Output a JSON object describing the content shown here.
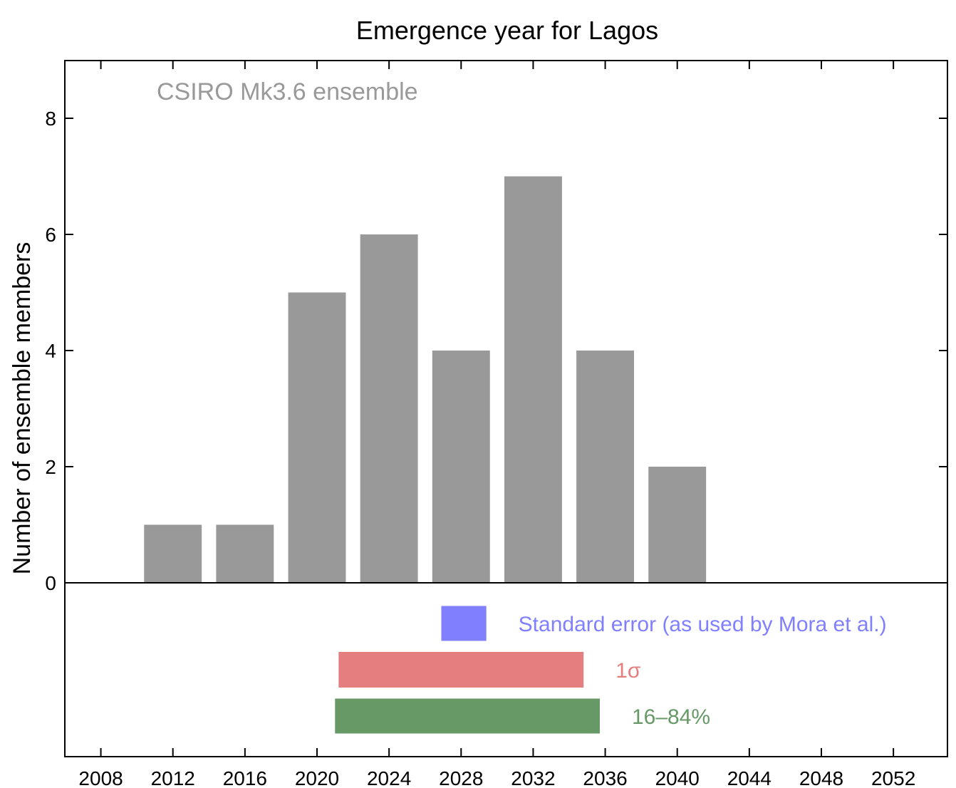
{
  "chart_data": {
    "type": "bar",
    "title": "Emergence year for Lagos",
    "annotation": "CSIRO Mk3.6 ensemble",
    "annotation_color": "#999999",
    "xlabel": "",
    "ylabel": "Number of ensemble members",
    "xlim": [
      2006,
      2055
    ],
    "ylim": [
      0,
      9
    ],
    "x_ticks": [
      2008,
      2012,
      2016,
      2020,
      2024,
      2028,
      2032,
      2036,
      2040,
      2044,
      2048,
      2052
    ],
    "x_tick_labels": [
      "2008",
      "2012",
      "2016",
      "2020",
      "2024",
      "2028",
      "2032",
      "2036",
      "2040",
      "2044",
      "2048",
      "2052"
    ],
    "y_ticks": [
      0,
      2,
      4,
      6,
      8
    ],
    "y_tick_labels": [
      "0",
      "2",
      "4",
      "6",
      "8"
    ],
    "bar_color": "#999999",
    "bar_width_years": 3.2,
    "bins": [
      {
        "x": 2012,
        "value": 1
      },
      {
        "x": 2016,
        "value": 1
      },
      {
        "x": 2020,
        "value": 5
      },
      {
        "x": 2024,
        "value": 6
      },
      {
        "x": 2028,
        "value": 4
      },
      {
        "x": 2032,
        "value": 7
      },
      {
        "x": 2036,
        "value": 4
      },
      {
        "x": 2040,
        "value": 2
      }
    ],
    "ranges": [
      {
        "label": "Standard error (as used by Mora et al.)",
        "start": 2026.9,
        "end": 2029.4,
        "color": "#8080ff",
        "text_color": "#8080ff"
      },
      {
        "label": "1σ",
        "start": 2021.2,
        "end": 2034.8,
        "color": "#e57e7e",
        "text_color": "#e57e7e"
      },
      {
        "label": "16–84%",
        "start": 2021.0,
        "end": 2035.7,
        "color": "#669966",
        "text_color": "#669966"
      }
    ],
    "grid": false
  }
}
